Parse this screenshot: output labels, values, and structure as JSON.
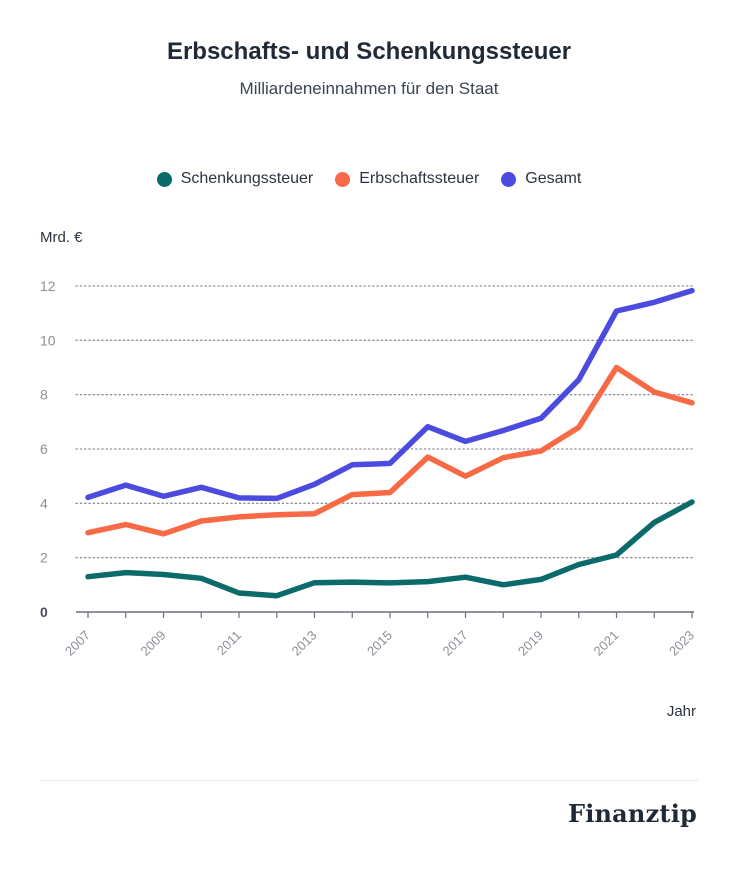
{
  "chart_data": {
    "type": "line",
    "title": "Erbschafts- und Schenkungssteuer",
    "subtitle": "Milliardeneinnahmen für den Staat",
    "ylabel": "Mrd. €",
    "xlabel": "Jahr",
    "ylim": [
      0,
      12
    ],
    "yticks": [
      0,
      2,
      4,
      6,
      8,
      10,
      12
    ],
    "xlim": [
      2007,
      2023
    ],
    "x": [
      2007,
      2008,
      2009,
      2010,
      2011,
      2012,
      2013,
      2014,
      2015,
      2016,
      2017,
      2018,
      2019,
      2020,
      2021,
      2022,
      2023
    ],
    "xtick_labels": [
      "2007",
      "2009",
      "2011",
      "2013",
      "2015",
      "2017",
      "2019",
      "2021",
      "2023"
    ],
    "grid": "horizontal dotted",
    "legend_position": "top-center",
    "series": [
      {
        "name": "Schenkungssteuer",
        "color": "#0b6b6b",
        "values": [
          1.3,
          1.45,
          1.38,
          1.24,
          0.7,
          0.6,
          1.08,
          1.1,
          1.07,
          1.12,
          1.28,
          1.0,
          1.2,
          1.75,
          2.1,
          3.3,
          4.05
        ]
      },
      {
        "name": "Erbschaftssteuer",
        "color": "#f86a45",
        "values": [
          2.92,
          3.22,
          2.88,
          3.35,
          3.5,
          3.58,
          3.62,
          4.32,
          4.4,
          5.7,
          5.0,
          5.68,
          5.93,
          6.8,
          9.0,
          8.1,
          7.7
        ]
      },
      {
        "name": "Gesamt",
        "color": "#4b4bdf",
        "values": [
          4.22,
          4.67,
          4.26,
          4.59,
          4.2,
          4.18,
          4.7,
          5.42,
          5.47,
          6.82,
          6.28,
          6.68,
          7.13,
          8.55,
          11.08,
          11.4,
          11.83
        ]
      }
    ]
  },
  "brand": {
    "logo_text": "Finanztip",
    "text_color": "#1f2a36"
  },
  "colors": {
    "grid": "#8c9298",
    "axis": "#6b7178",
    "tick_text": "#8a9098",
    "label_text": "#2b3440"
  }
}
